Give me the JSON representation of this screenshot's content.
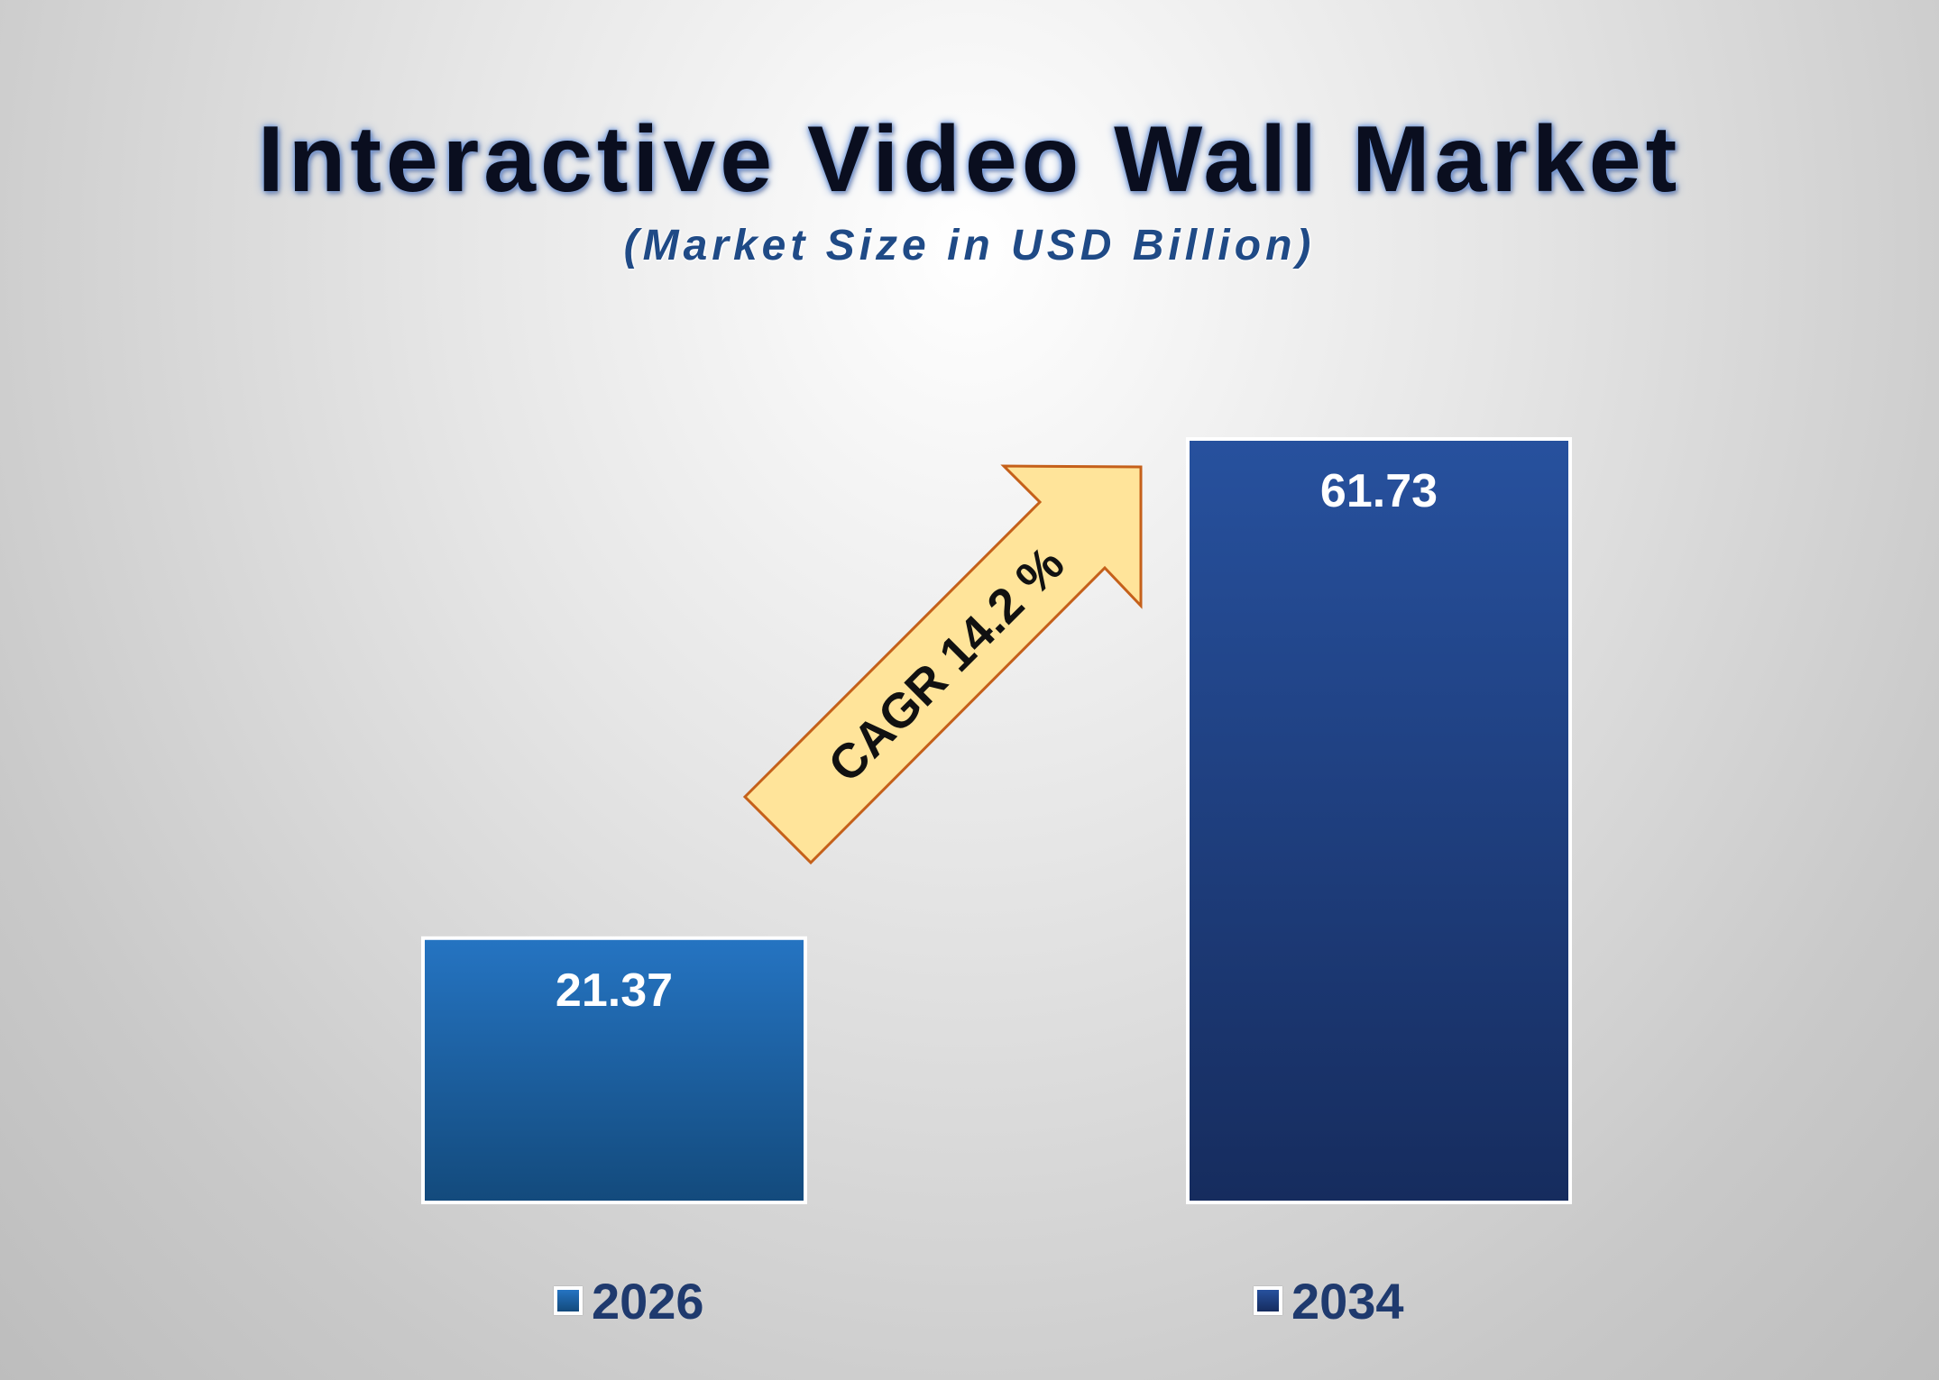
{
  "chart_data": {
    "type": "bar",
    "title": "Interactive Video Wall Market",
    "subtitle": "(Market Size in USD Billion)",
    "categories": [
      "2026",
      "2034"
    ],
    "values": [
      21.37,
      61.73
    ],
    "value_labels": [
      "21.37",
      "61.73"
    ],
    "ylim": [
      0,
      61.73
    ],
    "grid": false,
    "legend_position": "bottom",
    "colors": {
      "bar_2026_top": "#2574c2",
      "bar_2026_bottom": "#134a7c",
      "bar_2034_top": "#27519e",
      "bar_2034_bottom": "#162c5e",
      "arrow_fill": "#ffe49a",
      "arrow_stroke": "#c5601a"
    },
    "annotation": "CAGR 14.2 %"
  }
}
